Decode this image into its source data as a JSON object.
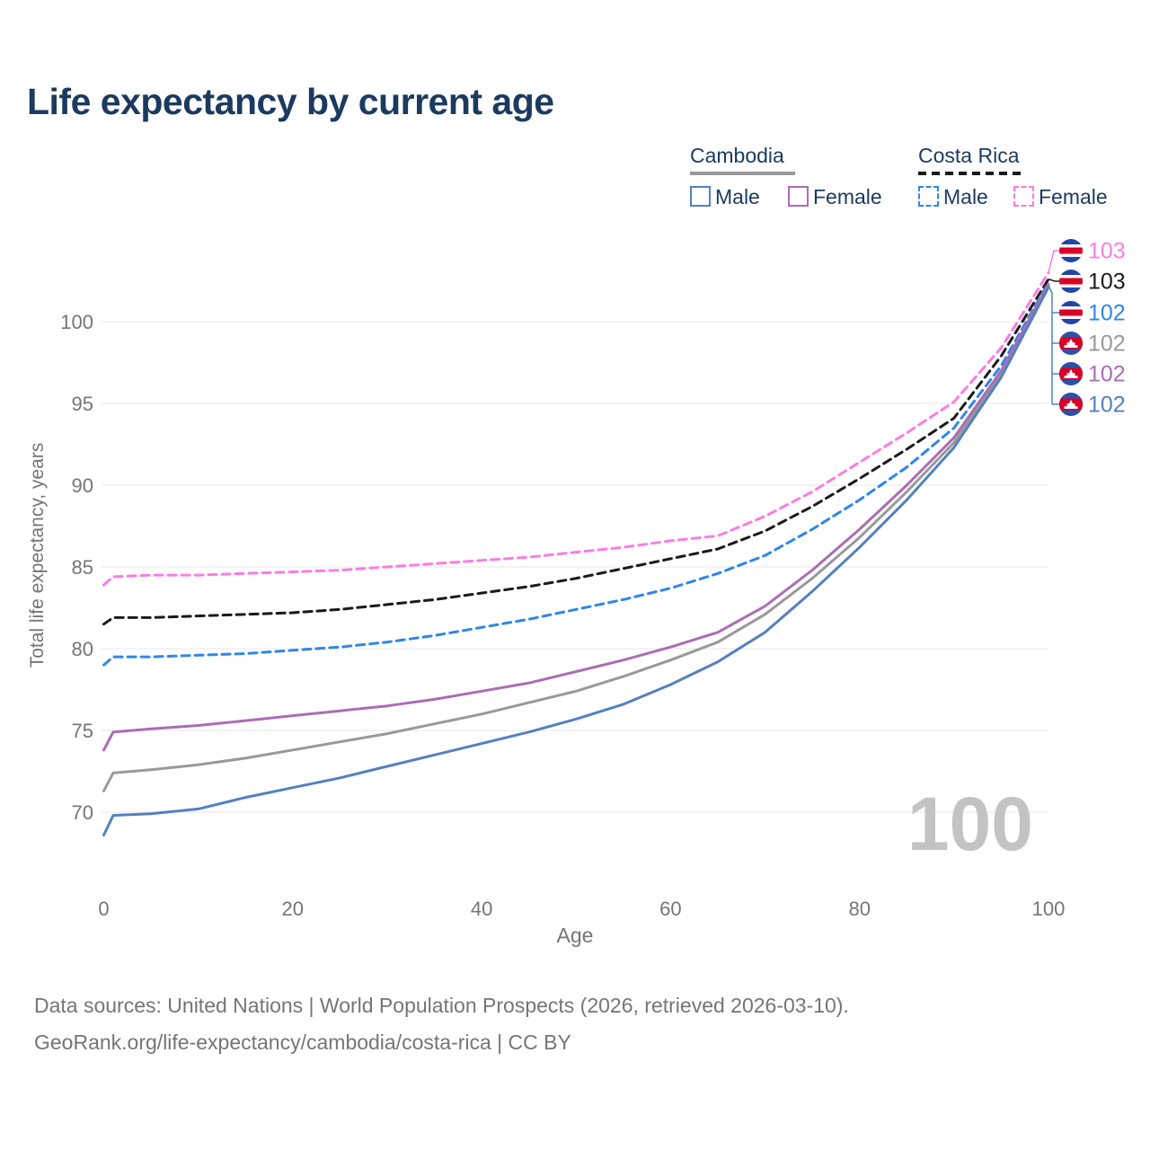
{
  "title": "Life expectancy by current age",
  "legend": {
    "cambodia": {
      "label": "Cambodia",
      "line_color": "#999999",
      "male": "Male",
      "male_color": "#5480c1",
      "female": "Female",
      "female_color": "#ab6db4"
    },
    "costa_rica": {
      "label": "Costa Rica",
      "line_color": "#1a1a1a",
      "male": "Male",
      "male_color": "#2f86ea",
      "female": "Female",
      "female_color": "#fb7ce3"
    }
  },
  "watermark": "100",
  "footer": {
    "line1": "Data sources: United Nations | World Population Prospects (2026, retrieved 2026-03-10).",
    "line2": "GeoRank.org/life-expectancy/cambodia/costa-rica | CC BY"
  },
  "chart_data": {
    "type": "line",
    "title": "Life expectancy by current age",
    "xlabel": "Age",
    "ylabel": "Total life expectancy, years",
    "x_ticks": [
      0,
      20,
      40,
      60,
      80,
      100
    ],
    "y_ticks": [
      70,
      75,
      80,
      85,
      90,
      95,
      100
    ],
    "xlim": [
      0,
      100
    ],
    "ylim": [
      66,
      104
    ],
    "grid": "horizontal",
    "legend_position": "top-right",
    "x": [
      0,
      1,
      5,
      10,
      15,
      20,
      25,
      30,
      35,
      40,
      45,
      50,
      55,
      60,
      65,
      70,
      75,
      80,
      85,
      90,
      95,
      100
    ],
    "series": [
      {
        "name": "Costa Rica Female",
        "country": "Costa Rica",
        "sex": "Female",
        "color": "#fb7ce3",
        "dashed": true,
        "end_label": "103",
        "flag": "costa-rica",
        "values": [
          83.9,
          84.4,
          84.5,
          84.5,
          84.6,
          84.7,
          84.8,
          85.0,
          85.2,
          85.4,
          85.6,
          85.9,
          86.2,
          86.6,
          86.9,
          88.1,
          89.6,
          91.4,
          93.2,
          95.1,
          98.4,
          103.0
        ]
      },
      {
        "name": "Costa Rica",
        "country": "Costa Rica",
        "sex": "Both",
        "color": "#1a1a1a",
        "dashed": true,
        "end_label": "103",
        "flag": "costa-rica",
        "values": [
          81.5,
          81.9,
          81.9,
          82.0,
          82.1,
          82.2,
          82.4,
          82.7,
          83.0,
          83.4,
          83.8,
          84.3,
          84.9,
          85.5,
          86.1,
          87.2,
          88.7,
          90.4,
          92.2,
          94.1,
          97.9,
          102.6
        ]
      },
      {
        "name": "Costa Rica Male",
        "country": "Costa Rica",
        "sex": "Male",
        "color": "#2f86ea",
        "dashed": true,
        "end_label": "102",
        "flag": "costa-rica",
        "values": [
          79.0,
          79.5,
          79.5,
          79.6,
          79.7,
          79.9,
          80.1,
          80.4,
          80.8,
          81.3,
          81.8,
          82.4,
          83.0,
          83.7,
          84.6,
          85.7,
          87.3,
          89.1,
          91.1,
          93.5,
          97.3,
          102.4
        ]
      },
      {
        "name": "Cambodia",
        "country": "Cambodia",
        "sex": "Both",
        "color": "#999999",
        "dashed": false,
        "end_label": "102",
        "flag": "cambodia",
        "values": [
          71.3,
          72.4,
          72.6,
          72.9,
          73.3,
          73.8,
          74.3,
          74.8,
          75.4,
          76.0,
          76.7,
          77.4,
          78.3,
          79.3,
          80.4,
          82.1,
          84.3,
          86.8,
          89.6,
          92.6,
          96.8,
          102.2
        ]
      },
      {
        "name": "Cambodia Female",
        "country": "Cambodia",
        "sex": "Female",
        "color": "#ab6db4",
        "dashed": false,
        "end_label": "102",
        "flag": "cambodia",
        "values": [
          73.8,
          74.9,
          75.1,
          75.3,
          75.6,
          75.9,
          76.2,
          76.5,
          76.9,
          77.4,
          77.9,
          78.6,
          79.3,
          80.1,
          81.0,
          82.6,
          84.8,
          87.3,
          90.0,
          92.9,
          97.0,
          102.3
        ]
      },
      {
        "name": "Cambodia Male",
        "country": "Cambodia",
        "sex": "Male",
        "color": "#5480c1",
        "dashed": false,
        "end_label": "102",
        "flag": "cambodia",
        "values": [
          68.6,
          69.8,
          69.9,
          70.2,
          70.9,
          71.5,
          72.1,
          72.8,
          73.5,
          74.2,
          74.9,
          75.7,
          76.6,
          77.8,
          79.2,
          81.0,
          83.5,
          86.2,
          89.1,
          92.3,
          96.6,
          102.1
        ]
      }
    ],
    "flag_colors": {
      "costa_rica_blue": "#2146a8",
      "costa_rica_red": "#d80027",
      "costa_rica_white": "#f5f5f5",
      "cambodia_blue": "#2a52a8",
      "cambodia_red": "#d80027",
      "cambodia_white": "#ffffff"
    }
  }
}
